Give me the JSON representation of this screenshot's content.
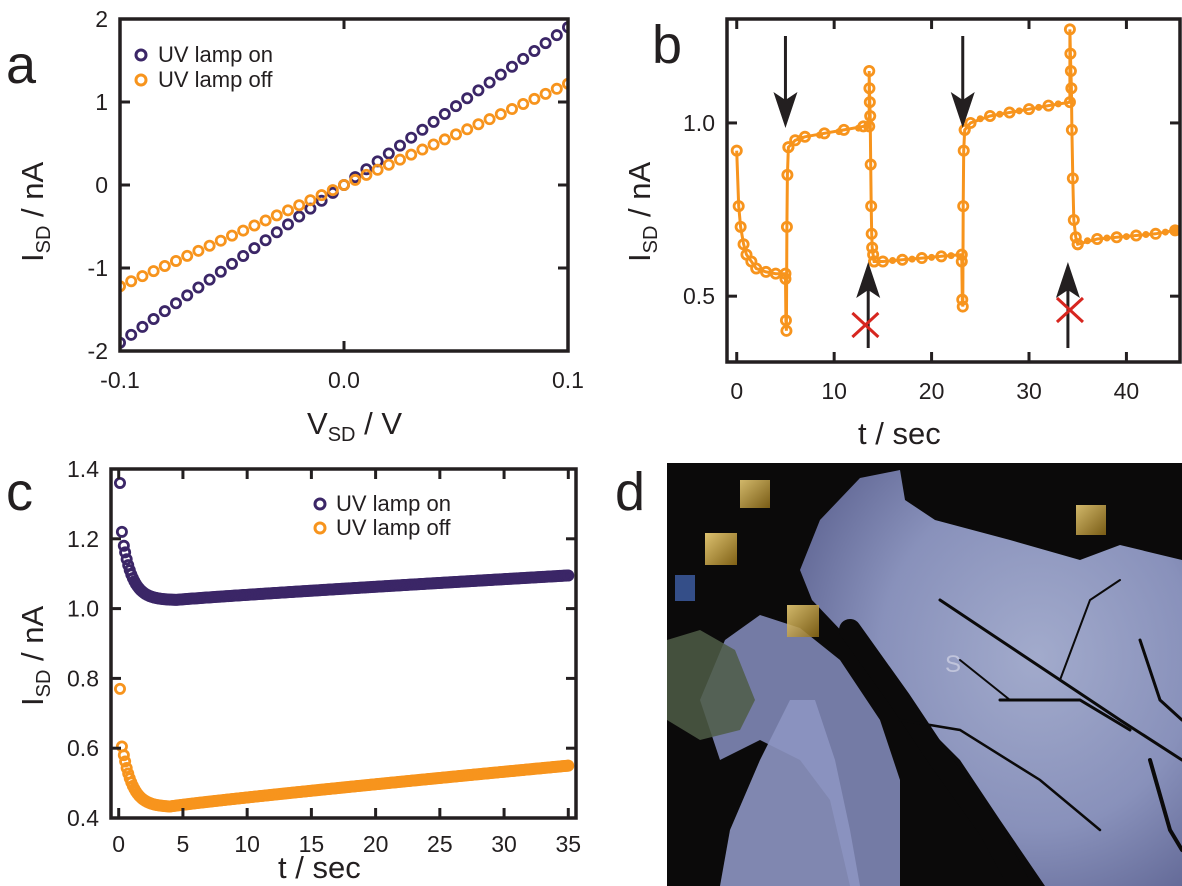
{
  "panel_letters": [
    "a",
    "b",
    "c",
    "d"
  ],
  "colors": {
    "uv_on": "#3b2667",
    "uv_off": "#f7941d",
    "arrow": "#231f20",
    "cross": "#d7261f",
    "frame": "#231f20"
  },
  "chart_data": [
    {
      "panel": "a",
      "type": "scatter",
      "xlabel": "V",
      "xlabel_sub": "SD",
      "xlabel_unit": " / V",
      "ylabel": "I",
      "ylabel_sub": "SD",
      "ylabel_unit": " / nA",
      "xlim": [
        -0.1,
        0.1
      ],
      "ylim": [
        -2,
        2
      ],
      "xticks": [
        -0.1,
        0.0,
        0.1
      ],
      "xtick_labels": [
        "-0.1",
        "0.0",
        "0.1"
      ],
      "yticks": [
        -2,
        -1,
        0,
        1,
        2
      ],
      "ytick_labels": [
        "-2",
        "-1",
        "0",
        "1",
        "2"
      ],
      "legend_position": "top-left",
      "series": [
        {
          "name": "UV lamp on",
          "slope": 19.0,
          "x_range": [
            -0.1,
            0.1
          ],
          "points": 41
        },
        {
          "name": "UV lamp off",
          "slope": 12.2,
          "x_range": [
            -0.1,
            0.1
          ],
          "points": 41
        }
      ]
    },
    {
      "panel": "b",
      "type": "line",
      "xlabel": "t / sec",
      "ylabel": "I",
      "ylabel_sub": "SD",
      "ylabel_unit": " / nA",
      "xlim": [
        -1,
        45.5
      ],
      "ylim": [
        0.31,
        1.3
      ],
      "xticks": [
        0,
        10,
        20,
        30,
        40
      ],
      "xtick_labels": [
        "0",
        "10",
        "20",
        "30",
        "40"
      ],
      "yticks": [
        0.5,
        1.0
      ],
      "ytick_labels": [
        "0.5",
        "1.0"
      ],
      "series": [
        {
          "name": "",
          "segments": [
            {
              "t": [
                0,
                0.2,
                0.4,
                0.7,
                1.0,
                1.5,
                2.0,
                3.0,
                4.0,
                5.0
              ],
              "y": [
                0.92,
                0.76,
                0.7,
                0.65,
                0.62,
                0.6,
                0.58,
                0.57,
                0.565,
                0.565
              ]
            },
            {
              "t": [
                5.0,
                5.05,
                5.1,
                5.15,
                5.2,
                5.3
              ],
              "y": [
                0.55,
                0.43,
                0.4,
                0.7,
                0.85,
                0.93
              ]
            },
            {
              "t": [
                5.3,
                6.0,
                7,
                9,
                11,
                13,
                13.6
              ],
              "y": [
                0.93,
                0.95,
                0.96,
                0.97,
                0.98,
                0.99,
                0.99
              ]
            },
            {
              "t": [
                13.6,
                13.62,
                13.66,
                13.7,
                13.75,
                13.8,
                13.85,
                13.9,
                14.0,
                14.1
              ],
              "y": [
                1.15,
                1.1,
                1.06,
                1.02,
                0.88,
                0.76,
                0.68,
                0.64,
                0.62,
                0.6
              ]
            },
            {
              "t": [
                14.1,
                15,
                17,
                19,
                21,
                23.1
              ],
              "y": [
                0.6,
                0.6,
                0.605,
                0.61,
                0.615,
                0.62
              ]
            },
            {
              "t": [
                23.1,
                23.15,
                23.2,
                23.25,
                23.3,
                23.4
              ],
              "y": [
                0.6,
                0.49,
                0.47,
                0.76,
                0.92,
                0.98
              ]
            },
            {
              "t": [
                23.4,
                24,
                26,
                28,
                30,
                32,
                34.2
              ],
              "y": [
                0.98,
                1.0,
                1.02,
                1.03,
                1.04,
                1.05,
                1.06
              ]
            },
            {
              "t": [
                34.2,
                34.25,
                34.3,
                34.35,
                34.4,
                34.5,
                34.6,
                34.8,
                35.0
              ],
              "y": [
                1.27,
                1.2,
                1.15,
                1.1,
                0.98,
                0.84,
                0.72,
                0.67,
                0.65
              ]
            },
            {
              "t": [
                35.0,
                37,
                39,
                41,
                43,
                45
              ],
              "y": [
                0.65,
                0.665,
                0.67,
                0.675,
                0.68,
                0.69
              ]
            }
          ]
        }
      ],
      "annotations": {
        "down_arrows_t": [
          5.0,
          23.2
        ],
        "up_arrows_t": [
          13.7,
          34.2
        ],
        "crosses_t": [
          13.0,
          34.0
        ]
      }
    },
    {
      "panel": "c",
      "type": "scatter",
      "xlabel": "t / sec",
      "ylabel": "I",
      "ylabel_sub": "SD",
      "ylabel_unit": " / nA",
      "xlim": [
        -0.6,
        35.6
      ],
      "ylim": [
        0.4,
        1.4
      ],
      "xticks": [
        0,
        5,
        10,
        15,
        20,
        25,
        30,
        35
      ],
      "xtick_labels": [
        "0",
        "5",
        "10",
        "15",
        "20",
        "25",
        "30",
        "35"
      ],
      "yticks": [
        0.4,
        0.6,
        0.8,
        1.0,
        1.2,
        1.4
      ],
      "ytick_labels": [
        "0.4",
        "0.6",
        "0.8",
        "1.0",
        "1.2",
        "1.4"
      ],
      "legend_position": "top-right",
      "series": [
        {
          "name": "UV lamp on",
          "start": [
            [
              0.1,
              1.36
            ],
            [
              0.25,
              1.22
            ],
            [
              0.4,
              1.18
            ]
          ],
          "end": [
            35,
            1.095
          ],
          "min": [
            4.5,
            1.025
          ]
        },
        {
          "name": "UV lamp off",
          "start": [
            [
              0.1,
              0.77
            ],
            [
              0.25,
              0.605
            ],
            [
              0.4,
              0.58
            ]
          ],
          "end": [
            35,
            0.55
          ],
          "min": [
            4.0,
            0.433
          ]
        }
      ]
    }
  ],
  "photo": {
    "panel": "d",
    "label_s": "S"
  }
}
